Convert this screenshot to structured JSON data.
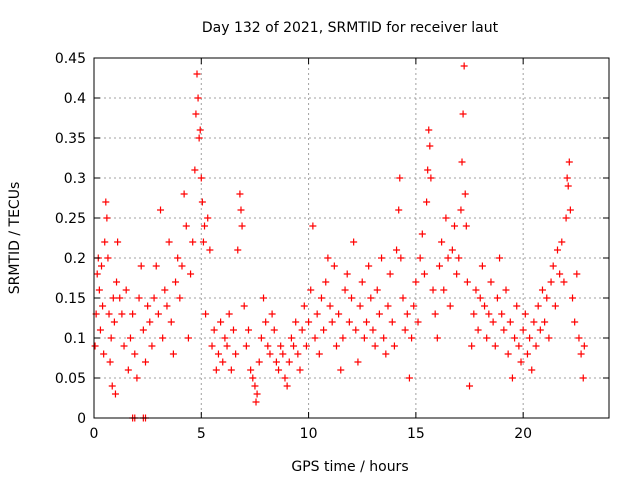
{
  "chart_data": {
    "type": "scatter",
    "title": "Day 132 of 2021, SRMTID for receiver laut",
    "xlabel": "GPS time / hours",
    "ylabel": "SRMTID / TECUs",
    "xlim": [
      0,
      24
    ],
    "ylim": [
      0,
      0.45
    ],
    "grid": true,
    "marker": "+",
    "color": "#ff0000",
    "x_ticks": [
      0,
      5,
      10,
      15,
      20
    ],
    "x_tick_labels": [
      "0",
      "5",
      "10",
      "15",
      "20"
    ],
    "y_ticks": [
      0,
      0.05,
      0.1,
      0.15,
      0.2,
      0.25,
      0.3,
      0.35,
      0.4,
      0.45
    ],
    "y_tick_labels": [
      "0",
      "0.05",
      "0.1",
      "0.15",
      "0.2",
      "0.25",
      "0.3",
      "0.35",
      "0.4",
      "0.45"
    ],
    "series": [
      {
        "name": "SRMTID",
        "points": [
          [
            0.05,
            0.09
          ],
          [
            0.1,
            0.13
          ],
          [
            0.15,
            0.18
          ],
          [
            0.2,
            0.2
          ],
          [
            0.25,
            0.16
          ],
          [
            0.3,
            0.11
          ],
          [
            0.35,
            0.19
          ],
          [
            0.4,
            0.14
          ],
          [
            0.45,
            0.08
          ],
          [
            0.5,
            0.22
          ],
          [
            0.55,
            0.27
          ],
          [
            0.6,
            0.25
          ],
          [
            0.65,
            0.2
          ],
          [
            0.7,
            0.13
          ],
          [
            0.75,
            0.07
          ],
          [
            0.8,
            0.1
          ],
          [
            0.85,
            0.04
          ],
          [
            0.9,
            0.15
          ],
          [
            0.95,
            0.12
          ],
          [
            1.0,
            0.03
          ],
          [
            1.05,
            0.17
          ],
          [
            1.1,
            0.22
          ],
          [
            1.2,
            0.15
          ],
          [
            1.3,
            0.13
          ],
          [
            1.4,
            0.09
          ],
          [
            1.5,
            0.16
          ],
          [
            1.6,
            0.06
          ],
          [
            1.7,
            0.1
          ],
          [
            1.8,
            0.13
          ],
          [
            1.9,
            0.08
          ],
          [
            2.0,
            0.05
          ],
          [
            2.1,
            0.15
          ],
          [
            2.2,
            0.19
          ],
          [
            2.3,
            0.11
          ],
          [
            2.4,
            0.07
          ],
          [
            2.5,
            0.14
          ],
          [
            2.6,
            0.12
          ],
          [
            2.7,
            0.09
          ],
          [
            2.8,
            0.15
          ],
          [
            2.9,
            0.19
          ],
          [
            3.0,
            0.13
          ],
          [
            3.1,
            0.26
          ],
          [
            3.2,
            0.1
          ],
          [
            3.3,
            0.16
          ],
          [
            3.4,
            0.14
          ],
          [
            3.5,
            0.22
          ],
          [
            3.6,
            0.12
          ],
          [
            3.7,
            0.08
          ],
          [
            3.8,
            0.17
          ],
          [
            3.9,
            0.2
          ],
          [
            4.0,
            0.15
          ],
          [
            4.1,
            0.19
          ],
          [
            4.2,
            0.28
          ],
          [
            4.3,
            0.24
          ],
          [
            4.4,
            0.1
          ],
          [
            4.5,
            0.18
          ],
          [
            4.6,
            0.22
          ],
          [
            4.7,
            0.31
          ],
          [
            4.75,
            0.38
          ],
          [
            4.8,
            0.43
          ],
          [
            4.85,
            0.4
          ],
          [
            4.9,
            0.35
          ],
          [
            4.95,
            0.36
          ],
          [
            5.0,
            0.3
          ],
          [
            5.05,
            0.27
          ],
          [
            5.1,
            0.22
          ],
          [
            5.15,
            0.24
          ],
          [
            5.2,
            0.13
          ],
          [
            5.3,
            0.25
          ],
          [
            5.4,
            0.21
          ],
          [
            5.5,
            0.09
          ],
          [
            5.6,
            0.11
          ],
          [
            5.7,
            0.06
          ],
          [
            5.8,
            0.08
          ],
          [
            5.9,
            0.12
          ],
          [
            6.0,
            0.07
          ],
          [
            6.1,
            0.1
          ],
          [
            6.2,
            0.09
          ],
          [
            6.3,
            0.13
          ],
          [
            6.4,
            0.06
          ],
          [
            6.5,
            0.11
          ],
          [
            6.6,
            0.08
          ],
          [
            6.7,
            0.21
          ],
          [
            6.8,
            0.28
          ],
          [
            6.85,
            0.26
          ],
          [
            6.9,
            0.24
          ],
          [
            7.0,
            0.14
          ],
          [
            7.1,
            0.09
          ],
          [
            7.2,
            0.11
          ],
          [
            7.3,
            0.06
          ],
          [
            7.4,
            0.05
          ],
          [
            7.5,
            0.04
          ],
          [
            7.55,
            0.02
          ],
          [
            7.6,
            0.03
          ],
          [
            7.7,
            0.07
          ],
          [
            7.8,
            0.1
          ],
          [
            7.9,
            0.15
          ],
          [
            8.0,
            0.12
          ],
          [
            8.1,
            0.09
          ],
          [
            8.2,
            0.08
          ],
          [
            8.3,
            0.13
          ],
          [
            8.4,
            0.11
          ],
          [
            8.5,
            0.07
          ],
          [
            8.6,
            0.06
          ],
          [
            8.7,
            0.09
          ],
          [
            8.8,
            0.08
          ],
          [
            8.9,
            0.05
          ],
          [
            9.0,
            0.04
          ],
          [
            9.1,
            0.07
          ],
          [
            9.2,
            0.1
          ],
          [
            9.3,
            0.09
          ],
          [
            9.4,
            0.12
          ],
          [
            9.5,
            0.08
          ],
          [
            9.6,
            0.06
          ],
          [
            9.7,
            0.11
          ],
          [
            9.8,
            0.14
          ],
          [
            9.9,
            0.09
          ],
          [
            10.0,
            0.12
          ],
          [
            10.1,
            0.16
          ],
          [
            10.2,
            0.24
          ],
          [
            10.3,
            0.1
          ],
          [
            10.4,
            0.13
          ],
          [
            10.5,
            0.08
          ],
          [
            10.6,
            0.15
          ],
          [
            10.7,
            0.11
          ],
          [
            10.8,
            0.17
          ],
          [
            10.9,
            0.2
          ],
          [
            11.0,
            0.14
          ],
          [
            11.1,
            0.12
          ],
          [
            11.2,
            0.19
          ],
          [
            11.3,
            0.09
          ],
          [
            11.4,
            0.13
          ],
          [
            11.5,
            0.06
          ],
          [
            11.6,
            0.1
          ],
          [
            11.7,
            0.16
          ],
          [
            11.8,
            0.18
          ],
          [
            11.9,
            0.12
          ],
          [
            12.0,
            0.15
          ],
          [
            12.1,
            0.22
          ],
          [
            12.2,
            0.11
          ],
          [
            12.3,
            0.07
          ],
          [
            12.4,
            0.14
          ],
          [
            12.5,
            0.17
          ],
          [
            12.6,
            0.1
          ],
          [
            12.7,
            0.12
          ],
          [
            12.8,
            0.19
          ],
          [
            12.9,
            0.15
          ],
          [
            13.0,
            0.11
          ],
          [
            13.1,
            0.09
          ],
          [
            13.2,
            0.16
          ],
          [
            13.3,
            0.13
          ],
          [
            13.4,
            0.2
          ],
          [
            13.5,
            0.1
          ],
          [
            13.6,
            0.08
          ],
          [
            13.7,
            0.14
          ],
          [
            13.8,
            0.18
          ],
          [
            13.9,
            0.12
          ],
          [
            14.0,
            0.09
          ],
          [
            14.1,
            0.21
          ],
          [
            14.2,
            0.26
          ],
          [
            14.25,
            0.3
          ],
          [
            14.3,
            0.2
          ],
          [
            14.4,
            0.15
          ],
          [
            14.5,
            0.11
          ],
          [
            14.6,
            0.13
          ],
          [
            14.7,
            0.05
          ],
          [
            14.8,
            0.1
          ],
          [
            14.9,
            0.14
          ],
          [
            15.0,
            0.17
          ],
          [
            15.1,
            0.12
          ],
          [
            15.2,
            0.2
          ],
          [
            15.3,
            0.23
          ],
          [
            15.4,
            0.18
          ],
          [
            15.5,
            0.27
          ],
          [
            15.55,
            0.31
          ],
          [
            15.6,
            0.36
          ],
          [
            15.65,
            0.34
          ],
          [
            15.7,
            0.3
          ],
          [
            15.8,
            0.16
          ],
          [
            15.9,
            0.13
          ],
          [
            16.0,
            0.1
          ],
          [
            16.1,
            0.19
          ],
          [
            16.2,
            0.22
          ],
          [
            16.3,
            0.16
          ],
          [
            16.4,
            0.25
          ],
          [
            16.5,
            0.2
          ],
          [
            16.6,
            0.14
          ],
          [
            16.7,
            0.21
          ],
          [
            16.8,
            0.24
          ],
          [
            16.9,
            0.18
          ],
          [
            17.0,
            0.2
          ],
          [
            17.1,
            0.26
          ],
          [
            17.15,
            0.32
          ],
          [
            17.2,
            0.38
          ],
          [
            17.25,
            0.44
          ],
          [
            17.3,
            0.28
          ],
          [
            17.35,
            0.24
          ],
          [
            17.4,
            0.17
          ],
          [
            17.5,
            0.04
          ],
          [
            17.6,
            0.09
          ],
          [
            17.7,
            0.13
          ],
          [
            17.8,
            0.16
          ],
          [
            17.9,
            0.11
          ],
          [
            18.0,
            0.15
          ],
          [
            18.1,
            0.19
          ],
          [
            18.2,
            0.14
          ],
          [
            18.3,
            0.1
          ],
          [
            18.4,
            0.13
          ],
          [
            18.5,
            0.17
          ],
          [
            18.6,
            0.12
          ],
          [
            18.7,
            0.09
          ],
          [
            18.8,
            0.15
          ],
          [
            18.9,
            0.2
          ],
          [
            19.0,
            0.13
          ],
          [
            19.1,
            0.11
          ],
          [
            19.2,
            0.16
          ],
          [
            19.3,
            0.08
          ],
          [
            19.4,
            0.12
          ],
          [
            19.5,
            0.05
          ],
          [
            19.6,
            0.1
          ],
          [
            19.7,
            0.14
          ],
          [
            19.8,
            0.09
          ],
          [
            19.9,
            0.07
          ],
          [
            20.0,
            0.11
          ],
          [
            20.1,
            0.13
          ],
          [
            20.2,
            0.08
          ],
          [
            20.3,
            0.1
          ],
          [
            20.4,
            0.06
          ],
          [
            20.5,
            0.12
          ],
          [
            20.6,
            0.09
          ],
          [
            20.7,
            0.14
          ],
          [
            20.8,
            0.11
          ],
          [
            20.9,
            0.16
          ],
          [
            21.0,
            0.12
          ],
          [
            21.1,
            0.15
          ],
          [
            21.2,
            0.1
          ],
          [
            21.3,
            0.17
          ],
          [
            21.4,
            0.19
          ],
          [
            21.5,
            0.14
          ],
          [
            21.6,
            0.21
          ],
          [
            21.7,
            0.18
          ],
          [
            21.8,
            0.22
          ],
          [
            21.9,
            0.17
          ],
          [
            22.0,
            0.25
          ],
          [
            22.05,
            0.3
          ],
          [
            22.1,
            0.29
          ],
          [
            22.15,
            0.32
          ],
          [
            22.2,
            0.26
          ],
          [
            22.3,
            0.15
          ],
          [
            22.4,
            0.12
          ],
          [
            22.5,
            0.18
          ],
          [
            22.6,
            0.1
          ],
          [
            22.7,
            0.08
          ],
          [
            22.8,
            0.05
          ],
          [
            22.85,
            0.09
          ],
          [
            1.8,
            0.0
          ],
          [
            1.9,
            0.0
          ],
          [
            2.3,
            0.0
          ],
          [
            2.4,
            0.0
          ]
        ]
      }
    ]
  }
}
